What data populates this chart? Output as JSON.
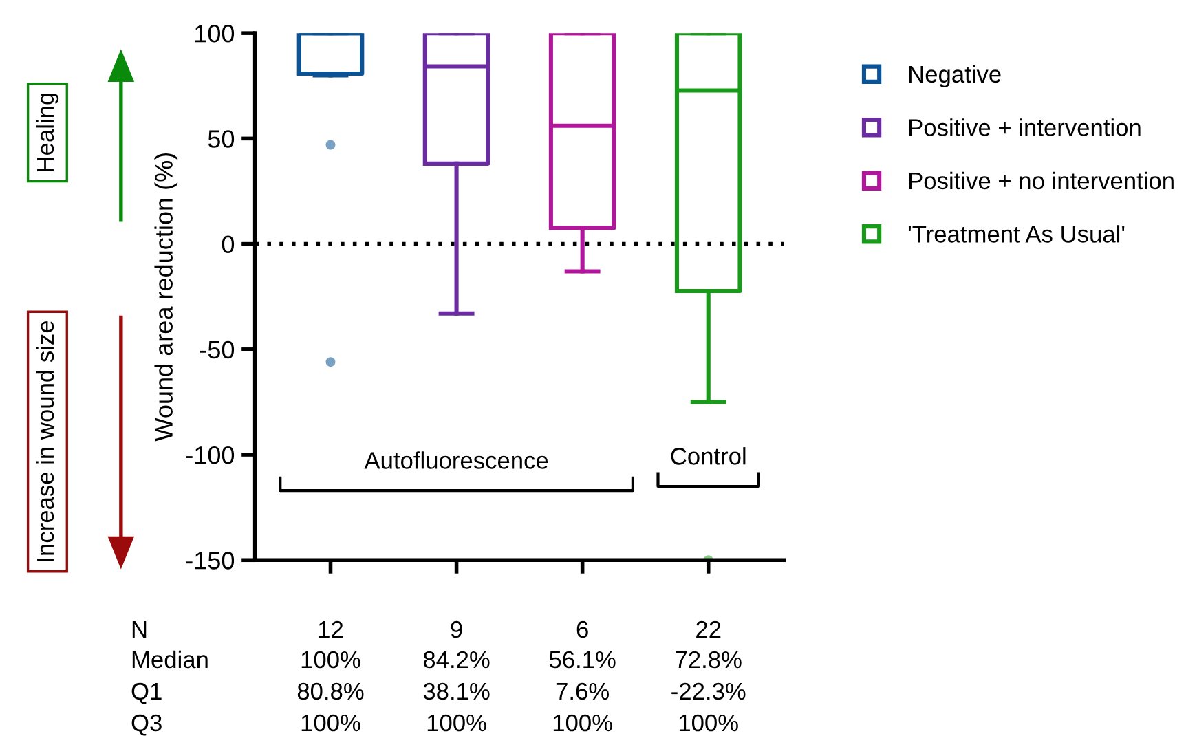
{
  "chart_data": {
    "type": "box",
    "ylabel": "Wound area reduction (%)",
    "categories": [
      null,
      null,
      null,
      null
    ],
    "ylim": [
      -150,
      100
    ],
    "yticks": [
      -150,
      -100,
      -50,
      0,
      50,
      100
    ],
    "grid": false,
    "legend": "right",
    "series": [
      {
        "name": "Negative",
        "color": "#0b5394",
        "boxes": [
          {
            "low": 80,
            "q1": 80.8,
            "median": 100,
            "q3": 100,
            "high": 100,
            "outliers": [
              47,
              -56
            ]
          },
          null,
          null,
          null
        ]
      },
      {
        "name": "Positive + intervention",
        "color": "#6a2ca0",
        "boxes": [
          null,
          {
            "low": -33,
            "q1": 38.1,
            "median": 84.2,
            "q3": 100,
            "high": 100
          },
          null,
          null
        ]
      },
      {
        "name": "Positive + no intervention",
        "color": "#b0179b",
        "boxes": [
          null,
          null,
          {
            "low": -13,
            "q1": 7.6,
            "median": 56.1,
            "q3": 100,
            "high": 100
          },
          null
        ]
      },
      {
        "name": "'Treatment As Usual'",
        "color": "#1a9a1a",
        "boxes": [
          null,
          null,
          null,
          {
            "low": -75,
            "q1": -22.3,
            "median": 72.8,
            "q3": 100,
            "high": 100,
            "outliers": [
              -150
            ]
          }
        ]
      }
    ],
    "ref_lines": [
      {
        "axis": "y",
        "value": 0,
        "color": "#000000",
        "line_style": "dotted"
      }
    ],
    "annotations": [
      "Autofluorescence",
      "Control",
      "Healing",
      "Increase in wound size",
      "N",
      "Median",
      "Q1",
      "Q3",
      "12",
      "9",
      "6",
      "22",
      "100%",
      "84.2%",
      "56.1%",
      "72.8%",
      "80.8%",
      "38.1%",
      "7.6%",
      "-22.3%",
      "100%",
      "100%",
      "100%",
      "100%"
    ]
  }
}
